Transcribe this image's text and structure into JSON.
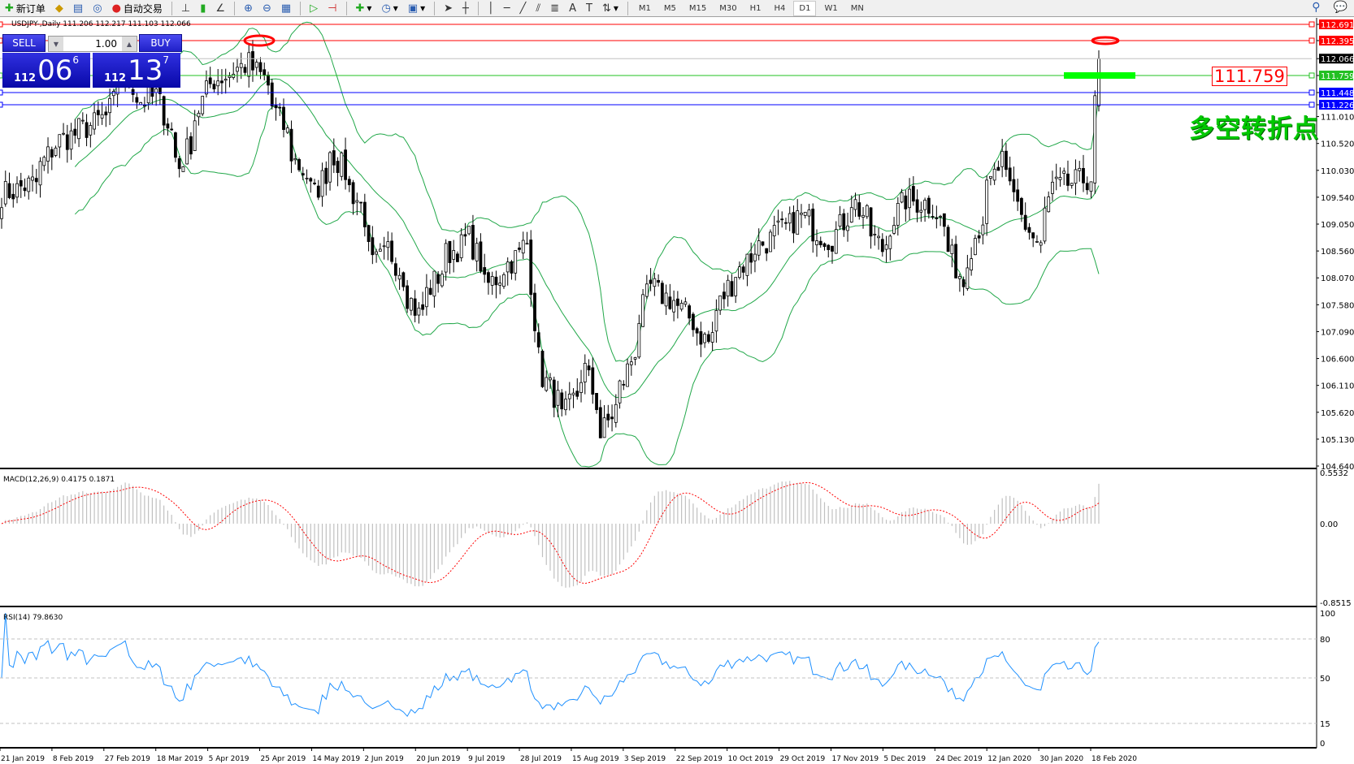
{
  "toolbar": {
    "new_order": "新订单",
    "auto_trading": "自动交易",
    "timeframes": [
      "M1",
      "M5",
      "M15",
      "M30",
      "H1",
      "H4",
      "D1",
      "W1",
      "MN"
    ],
    "active_timeframe": "D1"
  },
  "chart_header": {
    "symbol_line": "USDJPY-,Daily  111.206 112.217 111.103 112.066"
  },
  "trade_panel": {
    "sell_label": "SELL",
    "buy_label": "BUY",
    "lot": "1.00",
    "sell_big": "112",
    "sell_mid": "06",
    "sell_small": "6",
    "buy_big": "112",
    "buy_mid": "13",
    "buy_small": "7"
  },
  "annotations": {
    "level_label": "111.759",
    "text": "多空转折点"
  },
  "colors": {
    "bull_bear_text": "#00c800",
    "resistance": "#ff0000",
    "support": "#0000ff",
    "pivot": "#00ff00",
    "bands": "#22a84a",
    "rsi": "#1e90ff",
    "macd_hist": "#c0c0c0",
    "macd_signal": "#ff0000"
  },
  "chart_data": [
    {
      "type": "candlestick",
      "symbol": "USDJPY-",
      "timeframe": "Daily",
      "ylim": [
        104.64,
        112.691
      ],
      "y_ticks": [
        "112.691",
        "112.395",
        "112.066",
        "111.759",
        "111.448",
        "111.226",
        "111.010",
        "110.520",
        "110.030",
        "109.540",
        "109.050",
        "108.560",
        "108.070",
        "107.580",
        "107.090",
        "106.600",
        "106.110",
        "105.620",
        "105.130",
        "104.640"
      ],
      "x_ticks": [
        "21 Jan 2019",
        "8 Feb 2019",
        "27 Feb 2019",
        "18 Mar 2019",
        "5 Apr 2019",
        "25 Apr 2019",
        "14 May 2019",
        "2 Jun 2019",
        "20 Jun 2019",
        "9 Jul 2019",
        "28 Jul 2019",
        "15 Aug 2019",
        "3 Sep 2019",
        "22 Sep 2019",
        "10 Oct 2019",
        "29 Oct 2019",
        "17 Nov 2019",
        "5 Dec 2019",
        "24 Dec 2019",
        "12 Jan 2020",
        "30 Jan 2020",
        "18 Feb 2020"
      ],
      "last_bar": {
        "open": 111.206,
        "high": 112.217,
        "low": 111.103,
        "close": 112.066
      },
      "approx_closes": [
        [
          "2019-01-21",
          109.6
        ],
        [
          "2019-02-01",
          109.8
        ],
        [
          "2019-02-08",
          110.5
        ],
        [
          "2019-02-27",
          111.0
        ],
        [
          "2019-03-05",
          111.8
        ],
        [
          "2019-03-12",
          111.3
        ],
        [
          "2019-03-18",
          111.4
        ],
        [
          "2019-03-26",
          110.1
        ],
        [
          "2019-04-05",
          111.6
        ],
        [
          "2019-04-20",
          112.0
        ],
        [
          "2019-04-25",
          111.7
        ],
        [
          "2019-05-07",
          110.2
        ],
        [
          "2019-05-14",
          109.6
        ],
        [
          "2019-05-20",
          110.4
        ],
        [
          "2019-05-30",
          109.4
        ],
        [
          "2019-06-04",
          108.3
        ],
        [
          "2019-06-10",
          108.6
        ],
        [
          "2019-06-20",
          107.4
        ],
        [
          "2019-07-01",
          108.5
        ],
        [
          "2019-07-09",
          108.8
        ],
        [
          "2019-07-15",
          107.9
        ],
        [
          "2019-07-30",
          108.7
        ],
        [
          "2019-08-02",
          106.6
        ],
        [
          "2019-08-12",
          105.5
        ],
        [
          "2019-08-20",
          106.4
        ],
        [
          "2019-08-26",
          105.2
        ],
        [
          "2019-09-03",
          106.2
        ],
        [
          "2019-09-12",
          107.9
        ],
        [
          "2019-09-22",
          107.6
        ],
        [
          "2019-10-03",
          106.9
        ],
        [
          "2019-10-10",
          107.9
        ],
        [
          "2019-10-20",
          108.6
        ],
        [
          "2019-10-29",
          108.9
        ],
        [
          "2019-11-06",
          109.2
        ],
        [
          "2019-11-17",
          108.7
        ],
        [
          "2019-11-25",
          109.5
        ],
        [
          "2019-12-05",
          108.6
        ],
        [
          "2019-12-13",
          109.5
        ],
        [
          "2019-12-24",
          109.4
        ],
        [
          "2020-01-03",
          108.0
        ],
        [
          "2020-01-12",
          109.5
        ],
        [
          "2020-01-17",
          110.2
        ],
        [
          "2020-01-24",
          109.3
        ],
        [
          "2020-01-31",
          108.6
        ],
        [
          "2020-02-05",
          109.7
        ],
        [
          "2020-02-12",
          109.8
        ],
        [
          "2020-02-19",
          109.9
        ],
        [
          "2020-02-20",
          111.2
        ],
        [
          "2020-02-21",
          112.066
        ]
      ],
      "horizontal_lines": [
        {
          "price": 112.691,
          "color": "#ff0000"
        },
        {
          "price": 112.395,
          "color": "#ff0000"
        },
        {
          "price": 112.066,
          "color": "#c0c0c0"
        },
        {
          "price": 111.759,
          "color": "#22c022"
        },
        {
          "price": 111.448,
          "color": "#0000ff"
        },
        {
          "price": 111.226,
          "color": "#0000ff"
        }
      ],
      "indicator": "Bollinger Bands"
    },
    {
      "type": "bar+line",
      "title": "MACD(12,26,9) 0.4175 0.1871",
      "ylim": [
        -0.8515,
        0.5532
      ],
      "y_ticks": [
        "0.5532",
        "0.00",
        "-0.8515"
      ]
    },
    {
      "type": "line",
      "title": "RSI(14) 79.8630",
      "ylim": [
        0,
        100
      ],
      "levels": [
        80,
        50,
        15
      ],
      "y_ticks": [
        "100",
        "80",
        "50",
        "15",
        "0"
      ]
    }
  ]
}
